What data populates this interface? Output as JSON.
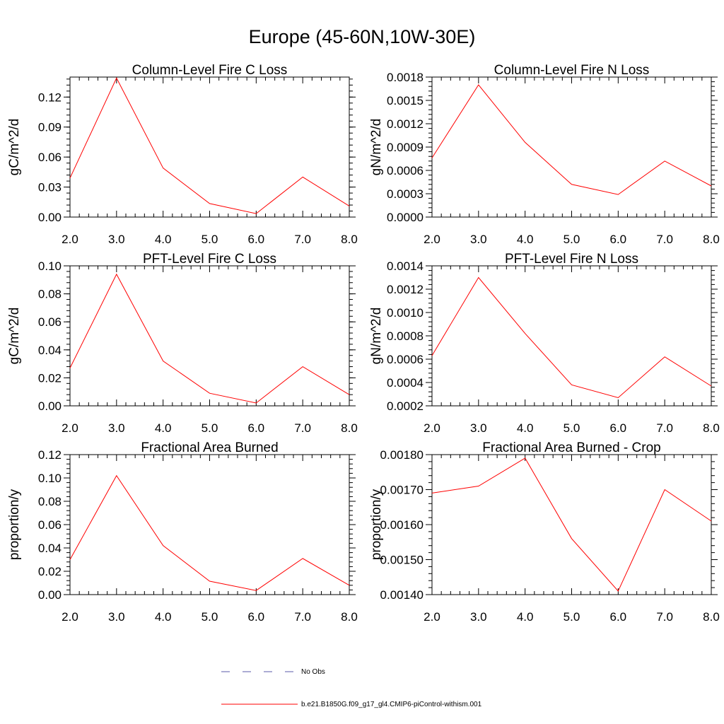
{
  "title": "Europe (45-60N,10W-30E)",
  "legend": {
    "entries": [
      {
        "label": "No Obs",
        "color": "#5a5aa8",
        "dash": true
      },
      {
        "label": "b.e21.B1850G.f09_g17_gl4.CMIP6-piControl-withism.001",
        "color": "#ff0000",
        "dash": false
      }
    ]
  },
  "colors": {
    "series": "#ff0000",
    "axis": "#000000"
  },
  "chart_data": [
    {
      "type": "line",
      "title": "Column-Level Fire C Loss",
      "xlabel": "",
      "ylabel": "gC/m^2/d",
      "xlim": [
        2,
        8
      ],
      "ylim": [
        0,
        0.14
      ],
      "x": [
        2,
        3,
        4,
        5,
        6,
        7,
        8
      ],
      "xticklabels": [
        "2.0",
        "3.0",
        "4.0",
        "5.0",
        "6.0",
        "7.0",
        "8.0"
      ],
      "yticks": [
        0,
        0.03,
        0.06,
        0.09,
        0.12
      ],
      "yticklabels": [
        "0.00",
        "0.03",
        "0.06",
        "0.09",
        "0.12"
      ],
      "yminor": 0.006,
      "series": [
        {
          "name": "b.e21.B1850G.f09_g17_gl4.CMIP6-piControl-withism.001",
          "values": [
            0.039,
            0.139,
            0.049,
            0.0135,
            0.0035,
            0.04,
            0.011
          ]
        }
      ]
    },
    {
      "type": "line",
      "title": "Column-Level Fire N Loss",
      "xlabel": "",
      "ylabel": "gN/m^2/d",
      "xlim": [
        2,
        8
      ],
      "ylim": [
        0,
        0.0018
      ],
      "x": [
        2,
        3,
        4,
        5,
        6,
        7,
        8
      ],
      "xticklabels": [
        "2.0",
        "3.0",
        "4.0",
        "5.0",
        "6.0",
        "7.0",
        "8.0"
      ],
      "yticks": [
        0,
        0.0003,
        0.0006,
        0.0009,
        0.0012,
        0.0015,
        0.0018
      ],
      "yticklabels": [
        "0.0000",
        "0.0003",
        "0.0006",
        "0.0009",
        "0.0012",
        "0.0015",
        "0.0018"
      ],
      "yminor": 6e-05,
      "series": [
        {
          "name": "b.e21.B1850G.f09_g17_gl4.CMIP6-piControl-withism.001",
          "values": [
            0.00076,
            0.0017,
            0.00096,
            0.00042,
            0.00029,
            0.00072,
            0.0004
          ]
        }
      ]
    },
    {
      "type": "line",
      "title": "PFT-Level Fire C Loss",
      "xlabel": "",
      "ylabel": "gC/m^2/d",
      "xlim": [
        2,
        8
      ],
      "ylim": [
        0,
        0.1
      ],
      "x": [
        2,
        3,
        4,
        5,
        6,
        7,
        8
      ],
      "xticklabels": [
        "2.0",
        "3.0",
        "4.0",
        "5.0",
        "6.0",
        "7.0",
        "8.0"
      ],
      "yticks": [
        0,
        0.02,
        0.04,
        0.06,
        0.08,
        0.1
      ],
      "yticklabels": [
        "0.00",
        "0.02",
        "0.04",
        "0.06",
        "0.08",
        "0.10"
      ],
      "yminor": 0.004,
      "series": [
        {
          "name": "b.e21.B1850G.f09_g17_gl4.CMIP6-piControl-withism.001",
          "values": [
            0.027,
            0.094,
            0.032,
            0.009,
            0.002,
            0.028,
            0.008
          ]
        }
      ]
    },
    {
      "type": "line",
      "title": "PFT-Level Fire N Loss",
      "xlabel": "",
      "ylabel": "gN/m^2/d",
      "xlim": [
        2,
        8
      ],
      "ylim": [
        0.0002,
        0.0014
      ],
      "x": [
        2,
        3,
        4,
        5,
        6,
        7,
        8
      ],
      "xticklabels": [
        "2.0",
        "3.0",
        "4.0",
        "5.0",
        "6.0",
        "7.0",
        "8.0"
      ],
      "yticks": [
        0.0002,
        0.0004,
        0.0006,
        0.0008,
        0.001,
        0.0012,
        0.0014
      ],
      "yticklabels": [
        "0.0002",
        "0.0004",
        "0.0006",
        "0.0008",
        "0.0010",
        "0.0012",
        "0.0014"
      ],
      "yminor": 4e-05,
      "series": [
        {
          "name": "b.e21.B1850G.f09_g17_gl4.CMIP6-piControl-withism.001",
          "values": [
            0.00063,
            0.0013,
            0.00082,
            0.00038,
            0.00027,
            0.00062,
            0.00037
          ]
        }
      ]
    },
    {
      "type": "line",
      "title": "Fractional Area Burned",
      "xlabel": "",
      "ylabel": "proportion/y",
      "xlim": [
        2,
        8
      ],
      "ylim": [
        0,
        0.12
      ],
      "x": [
        2,
        3,
        4,
        5,
        6,
        7,
        8
      ],
      "xticklabels": [
        "2.0",
        "3.0",
        "4.0",
        "5.0",
        "6.0",
        "7.0",
        "8.0"
      ],
      "yticks": [
        0,
        0.02,
        0.04,
        0.06,
        0.08,
        0.1,
        0.12
      ],
      "yticklabels": [
        "0.00",
        "0.02",
        "0.04",
        "0.06",
        "0.08",
        "0.10",
        "0.12"
      ],
      "yminor": 0.004,
      "series": [
        {
          "name": "b.e21.B1850G.f09_g17_gl4.CMIP6-piControl-withism.001",
          "values": [
            0.03,
            0.102,
            0.042,
            0.0115,
            0.0035,
            0.031,
            0.008
          ]
        }
      ]
    },
    {
      "type": "line",
      "title": "Fractional Area Burned - Crop",
      "xlabel": "",
      "ylabel": "proportion/y",
      "xlim": [
        2,
        8
      ],
      "ylim": [
        0.0014,
        0.0018
      ],
      "x": [
        2,
        3,
        4,
        5,
        6,
        7,
        8
      ],
      "xticklabels": [
        "2.0",
        "3.0",
        "4.0",
        "5.0",
        "6.0",
        "7.0",
        "8.0"
      ],
      "yticks": [
        0.0014,
        0.0015,
        0.0016,
        0.0017,
        0.0018
      ],
      "yticklabels": [
        "0.00140",
        "0.00150",
        "0.00160",
        "0.00170",
        "0.00180"
      ],
      "yminor": 2e-05,
      "series": [
        {
          "name": "b.e21.B1850G.f09_g17_gl4.CMIP6-piControl-withism.001",
          "values": [
            0.00169,
            0.00171,
            0.00179,
            0.00156,
            0.00141,
            0.0017,
            0.00161
          ]
        }
      ]
    }
  ]
}
